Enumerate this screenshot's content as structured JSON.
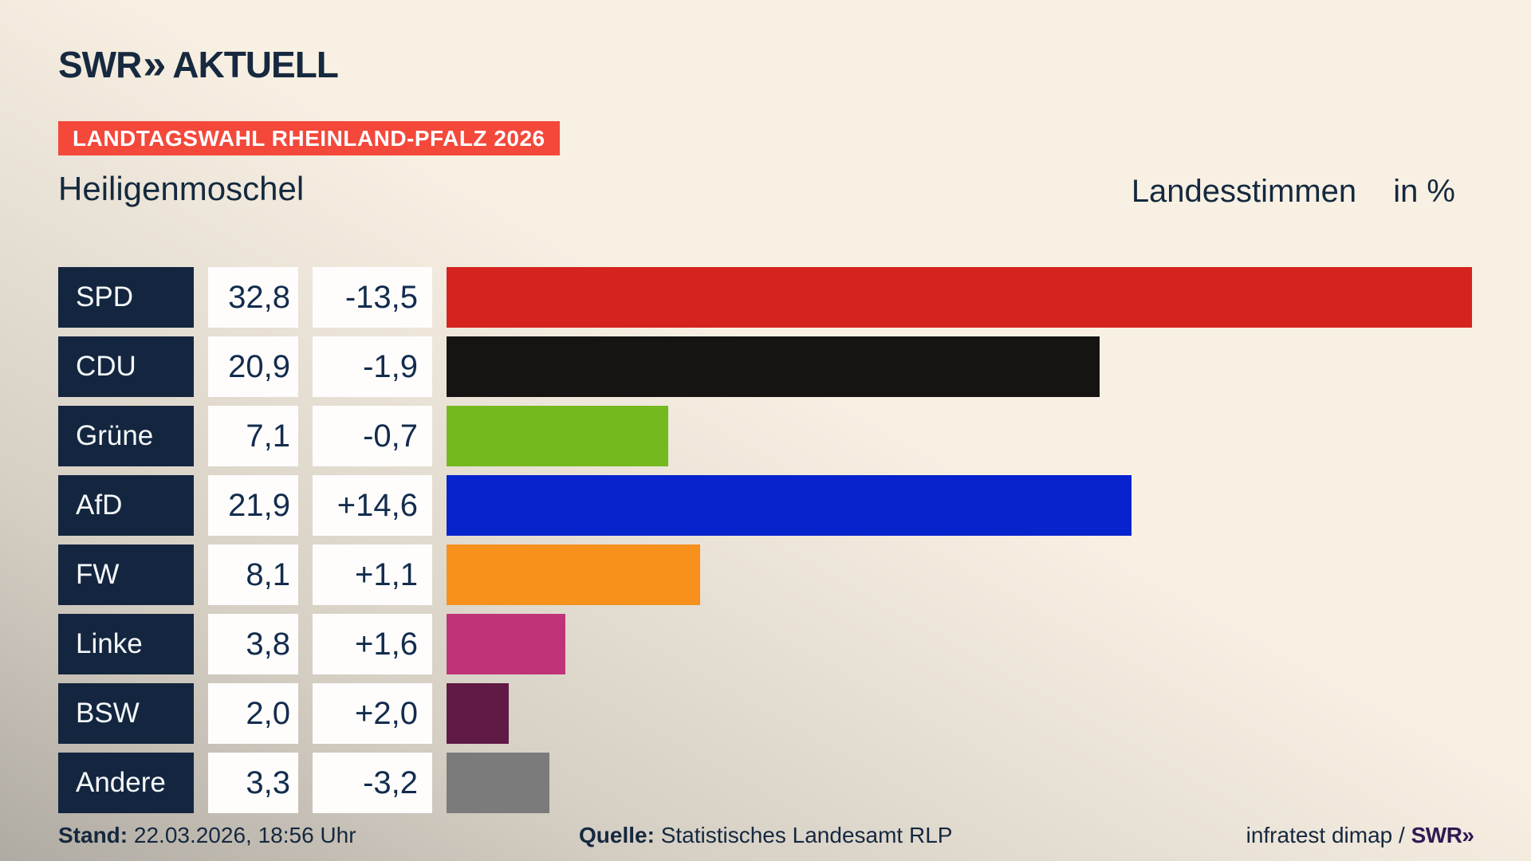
{
  "header": {
    "logo": {
      "swr": "SWR",
      "chevrons": "»",
      "suffix": "AKTUELL"
    },
    "badge": "LANDTAGSWAHL RHEINLAND-PFALZ 2026",
    "municipality": "Heiligenmoschel",
    "vote_type": "Landesstimmen",
    "unit": "in %"
  },
  "chart_data": {
    "type": "bar",
    "orientation": "horizontal",
    "title": "Landtagswahl Rheinland-Pfalz 2026 – Heiligenmoschel, Landesstimmen in %",
    "categories": [
      "SPD",
      "CDU",
      "Grüne",
      "AfD",
      "FW",
      "Linke",
      "BSW",
      "Andere"
    ],
    "values": [
      32.8,
      20.9,
      7.1,
      21.9,
      8.1,
      3.8,
      2.0,
      3.3
    ],
    "value_labels": [
      "32,8",
      "20,9",
      "7,1",
      "21,9",
      "8,1",
      "3,8",
      "2,0",
      "3,3"
    ],
    "changes": [
      "-13,5",
      "-1,9",
      "-0,7",
      "+14,6",
      "+1,1",
      "+1,6",
      "+2,0",
      "-3,2"
    ],
    "bar_colors": [
      "#d5231f",
      "#161412",
      "#74b91e",
      "#0623cd",
      "#f7901d",
      "#bf3479",
      "#5f1a45",
      "#7b7b7b"
    ],
    "xlim": [
      0,
      32.8
    ],
    "grid": false,
    "legend": false
  },
  "footer": {
    "stand_label": "Stand:",
    "stand_value": "22.03.2026, 18:56 Uhr",
    "quelle_label": "Quelle:",
    "quelle_value": "Statistisches Landesamt RLP",
    "credit_text": "infratest dimap /",
    "credit_logo_swr": "SWR",
    "credit_logo_chevrons": "»"
  },
  "colors": {
    "background_cream": "#f8f0e3",
    "background_gray": "#b0aeaa",
    "navy_text": "#14293e",
    "badge_red": "#f4483a",
    "label_box_navy": "#14263f",
    "value_box_white": "#fefdfc",
    "swr_mini_purple": "#2e1a53"
  }
}
